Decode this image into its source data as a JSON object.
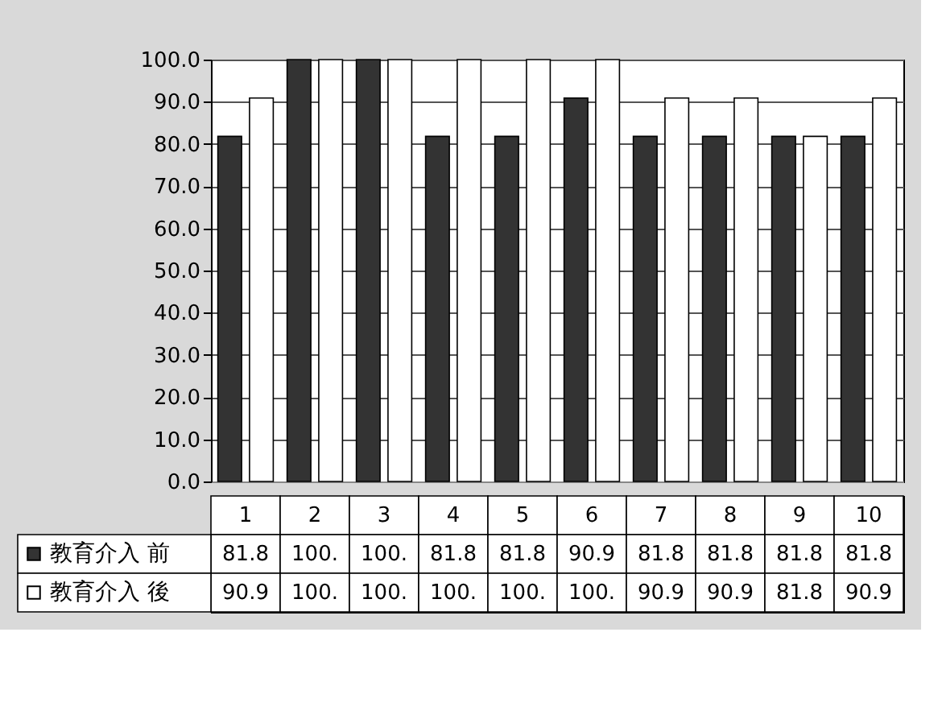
{
  "chart_data": {
    "type": "bar",
    "categories": [
      "1",
      "2",
      "3",
      "4",
      "5",
      "6",
      "7",
      "8",
      "9",
      "10"
    ],
    "series": [
      {
        "name": "教育介入 前",
        "color": "#333333",
        "values": [
          81.8,
          100,
          100,
          81.8,
          81.8,
          90.9,
          81.8,
          81.8,
          81.8,
          81.8
        ],
        "value_labels": [
          "81.8",
          "100.",
          "100.",
          "81.8",
          "81.8",
          "90.9",
          "81.8",
          "81.8",
          "81.8",
          "81.8"
        ]
      },
      {
        "name": "教育介入 後",
        "color": "#ffffff",
        "values": [
          90.9,
          100,
          100,
          100,
          100,
          100,
          90.9,
          90.9,
          81.8,
          90.9
        ],
        "value_labels": [
          "90.9",
          "100.",
          "100.",
          "100.",
          "100.",
          "100.",
          "90.9",
          "90.9",
          "81.8",
          "90.9"
        ]
      }
    ],
    "ylim": [
      0,
      100
    ],
    "yticks": [
      {
        "value": 0,
        "label": "0.0"
      },
      {
        "value": 10,
        "label": "10.0"
      },
      {
        "value": 20,
        "label": "20.0"
      },
      {
        "value": 30,
        "label": "30.0"
      },
      {
        "value": 40,
        "label": "40.0"
      },
      {
        "value": 50,
        "label": "50.0"
      },
      {
        "value": 60,
        "label": "60.0"
      },
      {
        "value": 70,
        "label": "70.0"
      },
      {
        "value": 80,
        "label": "80.0"
      },
      {
        "value": 90,
        "label": "90.0"
      },
      {
        "value": 100,
        "label": "100.0"
      }
    ],
    "grid": "y",
    "legend": "bottom left"
  }
}
